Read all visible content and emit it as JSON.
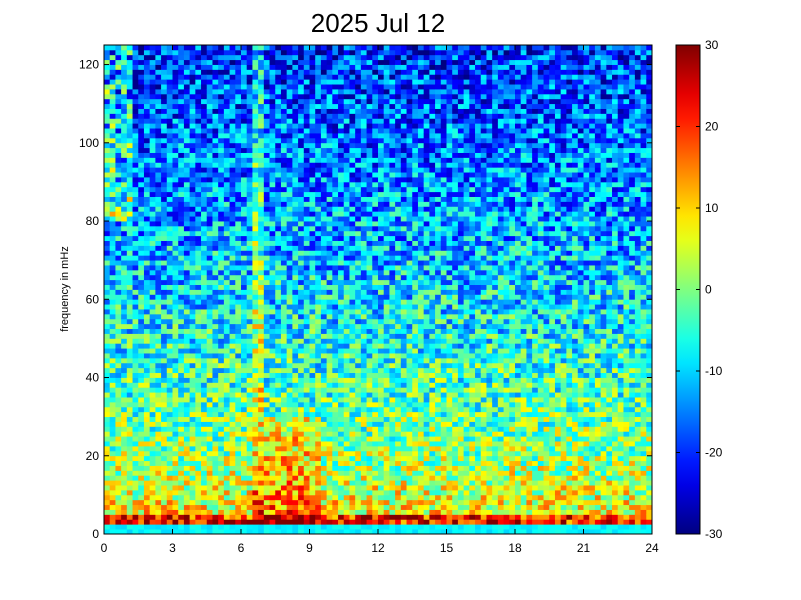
{
  "chart_data": {
    "type": "heatmap",
    "title": "2025 Jul 12",
    "xlabel": "",
    "ylabel": "frequency in mHz",
    "xlim": [
      0,
      24
    ],
    "ylim": [
      0,
      125
    ],
    "xticks": [
      0,
      3,
      6,
      9,
      12,
      15,
      18,
      21,
      24
    ],
    "yticks": [
      0,
      20,
      40,
      60,
      80,
      100,
      120
    ],
    "colorbar": {
      "range": [
        -30,
        30
      ],
      "ticks": [
        -30,
        -20,
        -10,
        0,
        10,
        20,
        30
      ],
      "colormap": "jet",
      "colors": [
        "#00008f",
        "#0000ff",
        "#00ffff",
        "#ffff00",
        "#ff0000",
        "#800000"
      ]
    },
    "grid": false,
    "x_bins": 96,
    "y_bins": 100,
    "features": {
      "vertical_line_hour": 6.8,
      "bottom_band_mhz": [
        0,
        2
      ],
      "hot_region_hours": [
        7,
        9.5
      ],
      "hot_region_mhz": [
        0,
        30
      ]
    }
  }
}
